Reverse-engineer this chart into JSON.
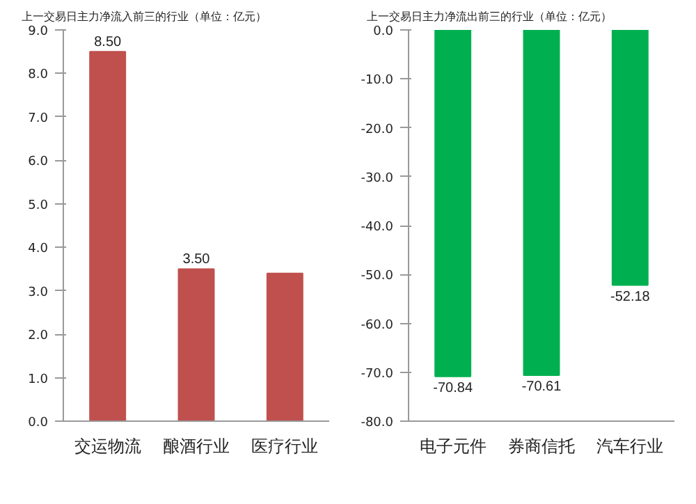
{
  "chart_data": [
    {
      "type": "bar",
      "title": "上一交易日主力净流入前三的行业（单位：亿元）",
      "categories": [
        "交运物流",
        "酿酒行业",
        "医疗行业"
      ],
      "values": [
        8.5,
        3.5,
        3.4
      ],
      "value_labels": [
        "8.50",
        "3.50",
        null
      ],
      "color": "#c0504d",
      "ylim": [
        0,
        9
      ],
      "yticks": [
        {
          "value": 0,
          "label": "0.0"
        },
        {
          "value": 1,
          "label": "1.0"
        },
        {
          "value": 2,
          "label": "2.0"
        },
        {
          "value": 3,
          "label": "3.0"
        },
        {
          "value": 4,
          "label": "4.0"
        },
        {
          "value": 5,
          "label": "5.0"
        },
        {
          "value": 6,
          "label": "6.0"
        },
        {
          "value": 7,
          "label": "7.0"
        },
        {
          "value": 8,
          "label": "8.0"
        },
        {
          "value": 9,
          "label": "9.0"
        }
      ]
    },
    {
      "type": "bar",
      "title": "上一交易日主力净流出前三的行业（单位：亿元）",
      "categories": [
        "电子元件",
        "券商信托",
        "汽车行业"
      ],
      "values": [
        -70.84,
        -70.61,
        -52.18
      ],
      "value_labels": [
        "-70.84",
        "-70.61",
        "-52.18"
      ],
      "color": "#00b050",
      "ylim": [
        -80,
        0
      ],
      "yticks": [
        {
          "value": -80,
          "label": "-80.0"
        },
        {
          "value": -70,
          "label": "-70.0"
        },
        {
          "value": -60,
          "label": "-60.0"
        },
        {
          "value": -50,
          "label": "-50.0"
        },
        {
          "value": -40,
          "label": "-40.0"
        },
        {
          "value": -30,
          "label": "-30.0"
        },
        {
          "value": -20,
          "label": "-20.0"
        },
        {
          "value": -10,
          "label": "-10.0"
        },
        {
          "value": 0,
          "label": "0.0"
        }
      ]
    }
  ]
}
